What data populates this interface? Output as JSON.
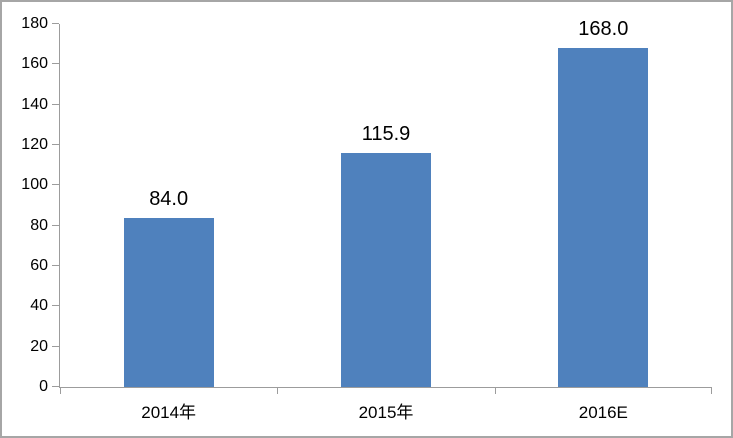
{
  "chart_data": {
    "type": "bar",
    "categories": [
      "2014年",
      "2015年",
      "2016E"
    ],
    "values": [
      84.0,
      115.9,
      168.0
    ],
    "data_labels": [
      "84.0",
      "115.9",
      "168.0"
    ],
    "title": "",
    "xlabel": "",
    "ylabel": "",
    "ylim": [
      0,
      180
    ],
    "ytick_step": 20,
    "ytick_labels": [
      "0",
      "20",
      "40",
      "60",
      "80",
      "100",
      "120",
      "140",
      "160",
      "180"
    ],
    "grid": false,
    "legend": "none",
    "colors": {
      "bar_fill": "#4F81BD",
      "axis_line": "#9C9C9C",
      "label_text": "#000000",
      "frame_border": "#A6A6A6",
      "background": "#FFFFFF"
    }
  }
}
